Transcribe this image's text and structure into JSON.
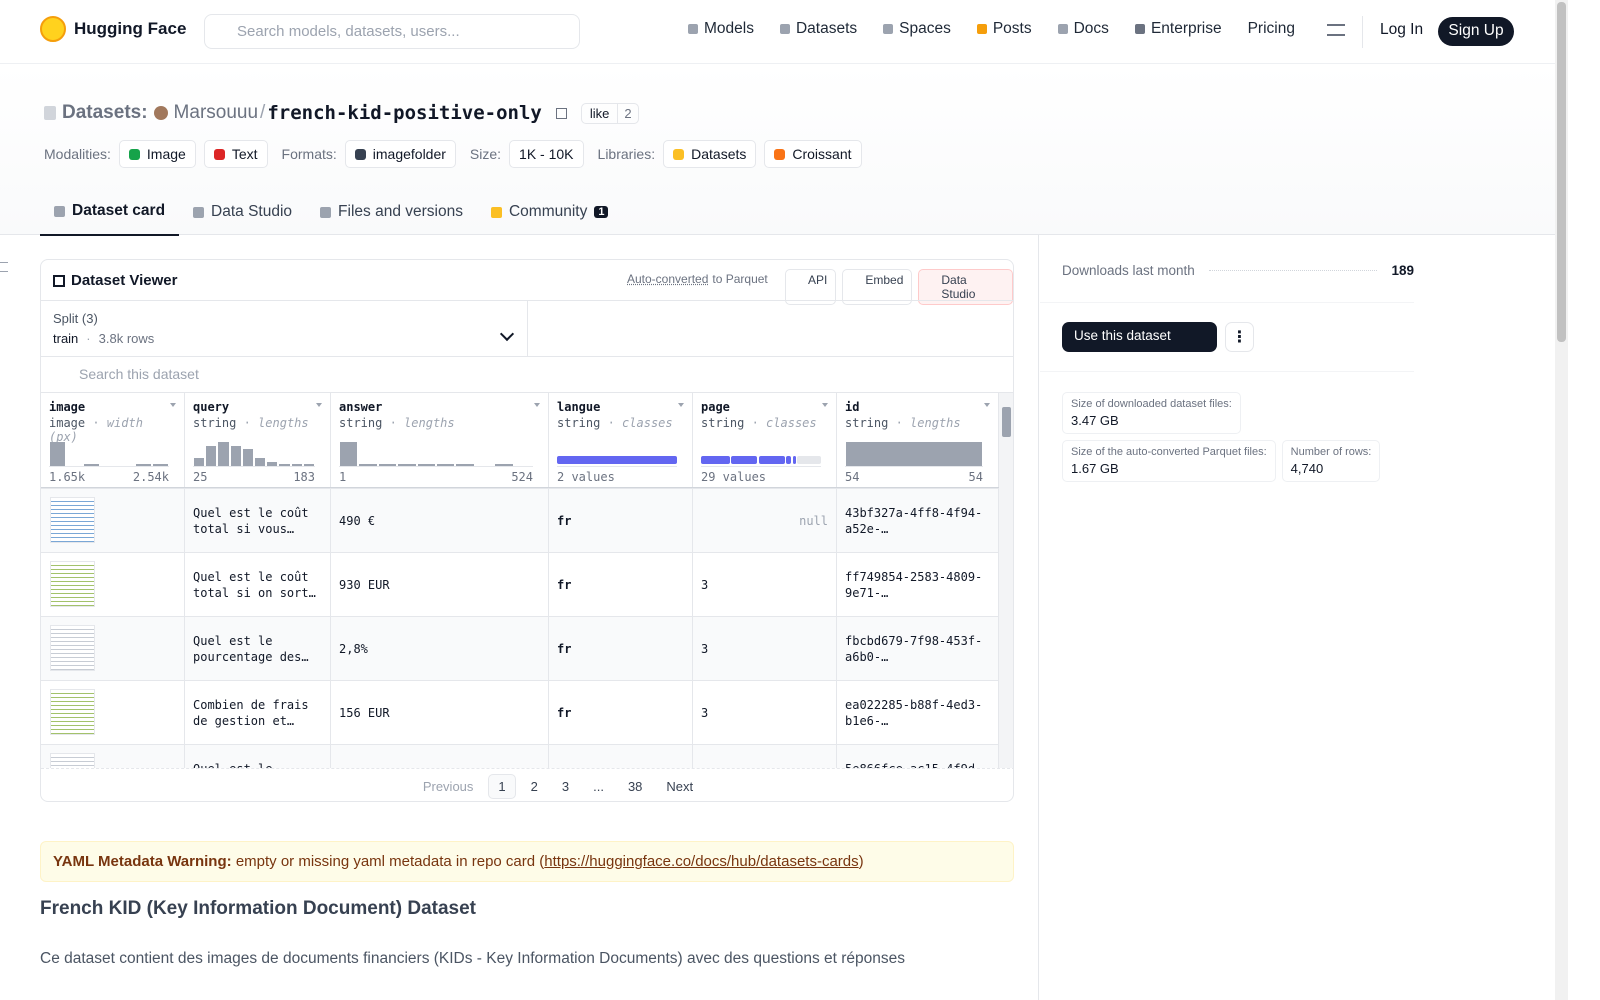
{
  "nav": {
    "brand": "Hugging Face",
    "search_placeholder": "Search models, datasets, users...",
    "links": [
      "Models",
      "Datasets",
      "Spaces",
      "Posts",
      "Docs",
      "Enterprise",
      "Pricing"
    ],
    "login": "Log In",
    "signup": "Sign Up"
  },
  "header": {
    "section": "Datasets:",
    "owner": "Marsouuu",
    "separator": "/",
    "name": "french-kid-positive-only",
    "like": "like",
    "likes": 2,
    "tags": [
      {
        "label": "Modalities:",
        "items": [
          "Image",
          "Text"
        ]
      },
      {
        "label": "Formats:",
        "items": [
          "imagefolder"
        ]
      },
      {
        "label": "Size:",
        "items": [
          "1K - 10K"
        ]
      },
      {
        "label": "Libraries:",
        "items": [
          "Datasets",
          "Croissant"
        ]
      }
    ]
  },
  "tabs": [
    {
      "label": "Dataset card"
    },
    {
      "label": "Data Studio"
    },
    {
      "label": "Files and versions"
    },
    {
      "label": "Community",
      "badge": 1
    }
  ],
  "viewer": {
    "title": "Dataset Viewer",
    "auto": "Auto-converted",
    "to_parquet": "to Parquet",
    "buttons": [
      "API",
      "Embed",
      "Data Studio"
    ],
    "split_label": "Split (3)",
    "split": "train",
    "split_rows": "3.8k rows",
    "search": "Search this dataset",
    "columns": [
      {
        "name": "image",
        "type": "image",
        "kind": "width (px)",
        "min": "1.65k",
        "max": "2.54k",
        "histogram": [
          22,
          0,
          2,
          0,
          0,
          2,
          2
        ]
      },
      {
        "name": "query",
        "type": "string",
        "kind": "lengths",
        "min": 25,
        "max": 183,
        "histogram": [
          8,
          20,
          24,
          20,
          17,
          8,
          4,
          2,
          2,
          2
        ]
      },
      {
        "name": "answer",
        "type": "string",
        "kind": "lengths",
        "min": 1,
        "max": 524,
        "histogram": [
          24,
          2,
          2,
          2,
          2,
          2,
          2,
          0,
          2,
          0
        ]
      },
      {
        "name": "langue",
        "type": "string",
        "kind": "classes",
        "summary": "2 values"
      },
      {
        "name": "page",
        "type": "string",
        "kind": "classes",
        "summary": "29 values"
      },
      {
        "name": "id",
        "type": "string",
        "kind": "lengths",
        "min": 54,
        "max": 54,
        "histogram": [
          24
        ]
      }
    ],
    "rows": [
      {
        "query": "Quel est le coût total si vous…",
        "answer": "490 €",
        "langue": "fr",
        "page": "null",
        "id": "43bf327a-4ff8-4f94-a52e-…"
      },
      {
        "query": "Quel est le coût total si on sort…",
        "answer": "930 EUR",
        "langue": "fr",
        "page": "3",
        "id": "ff749854-2583-4809-9e71-…"
      },
      {
        "query": "Quel est le pourcentage des…",
        "answer": "2,8%",
        "langue": "fr",
        "page": "3",
        "id": "fbcbd679-7f98-453f-a6b0-…"
      },
      {
        "query": "Combien de frais de gestion et…",
        "answer": "156 EUR",
        "langue": "fr",
        "page": "3",
        "id": "ea022285-b88f-4ed3-b1e6-…"
      },
      {
        "query": "Quel est le",
        "answer": null,
        "langue": null,
        "page": null,
        "id": "5e866fce-ac15-4f9d-"
      }
    ],
    "pagination": {
      "previous": "Previous",
      "pages": [
        "1",
        "2",
        "3",
        "...",
        "38"
      ],
      "next": "Next"
    }
  },
  "card": {
    "warning_label": "YAML Metadata Warning:",
    "warning_text": "empty or missing yaml metadata in repo card (",
    "warning_link": "https://huggingface.co/docs/hub/datasets-cards",
    "warning_end": ")",
    "heading": "French KID (Key Information Document) Dataset",
    "paragraph": "Ce dataset contient des images de documents financiers (KIDs - Key Information Documents) avec des questions et réponses"
  },
  "sidebar": {
    "downloads_label": "Downloads last month",
    "downloads": 189,
    "use": "Use this dataset",
    "stats": [
      {
        "label": "Size of downloaded dataset files:",
        "value": "3.47 GB"
      },
      {
        "label": "Size of the auto-converted Parquet files:",
        "value": "1.67 GB"
      },
      {
        "label": "Number of rows:",
        "value": "4,740"
      }
    ]
  }
}
